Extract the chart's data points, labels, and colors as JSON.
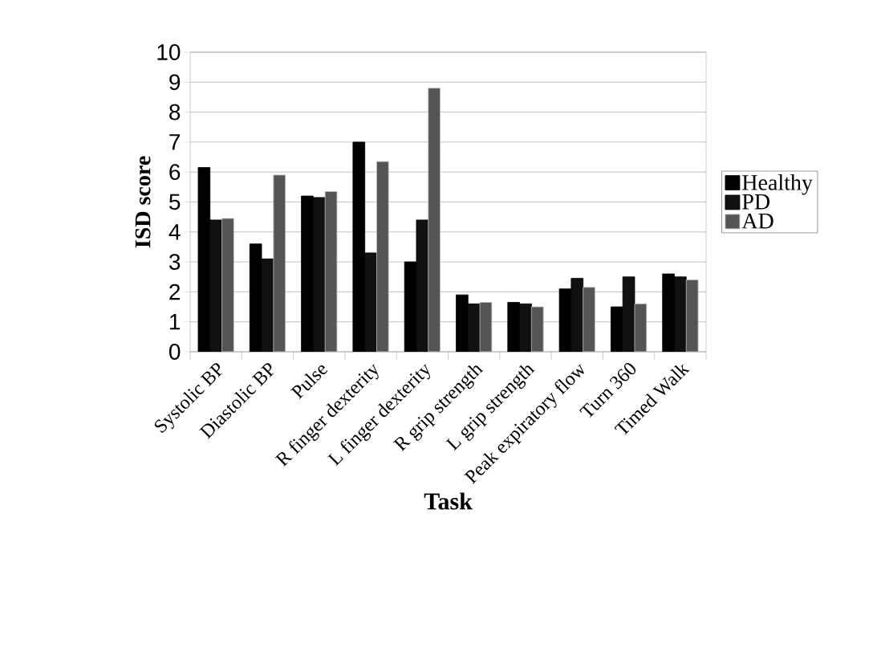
{
  "chart_data": {
    "type": "bar",
    "xlabel": "Task",
    "ylabel": "ISD score",
    "categories": [
      "Systolic BP",
      "Diastolic BP",
      "Pulse",
      "R finger dexterity",
      "L finger dexterity",
      "R grip strength",
      "L grip strength",
      "Peak expiratory flow",
      "Turn 360",
      "Timed Walk"
    ],
    "series": [
      {
        "name": "Healthy",
        "color": "#000000",
        "values": [
          6.15,
          3.6,
          5.2,
          7.0,
          3.0,
          1.9,
          1.65,
          2.1,
          1.5,
          2.6
        ]
      },
      {
        "name": "PD",
        "color": "#111111",
        "values": [
          4.4,
          3.1,
          5.15,
          3.3,
          4.4,
          1.6,
          1.6,
          2.45,
          2.5,
          2.5
        ]
      },
      {
        "name": "AD",
        "color": "#555555",
        "values": [
          4.45,
          5.9,
          5.35,
          6.35,
          8.8,
          1.65,
          1.5,
          2.15,
          1.6,
          2.4
        ]
      }
    ],
    "ylim": [
      0,
      10
    ],
    "yticks": [
      0,
      1,
      2,
      3,
      4,
      5,
      6,
      7,
      8,
      9,
      10
    ],
    "grid": "y",
    "legend": "right"
  }
}
